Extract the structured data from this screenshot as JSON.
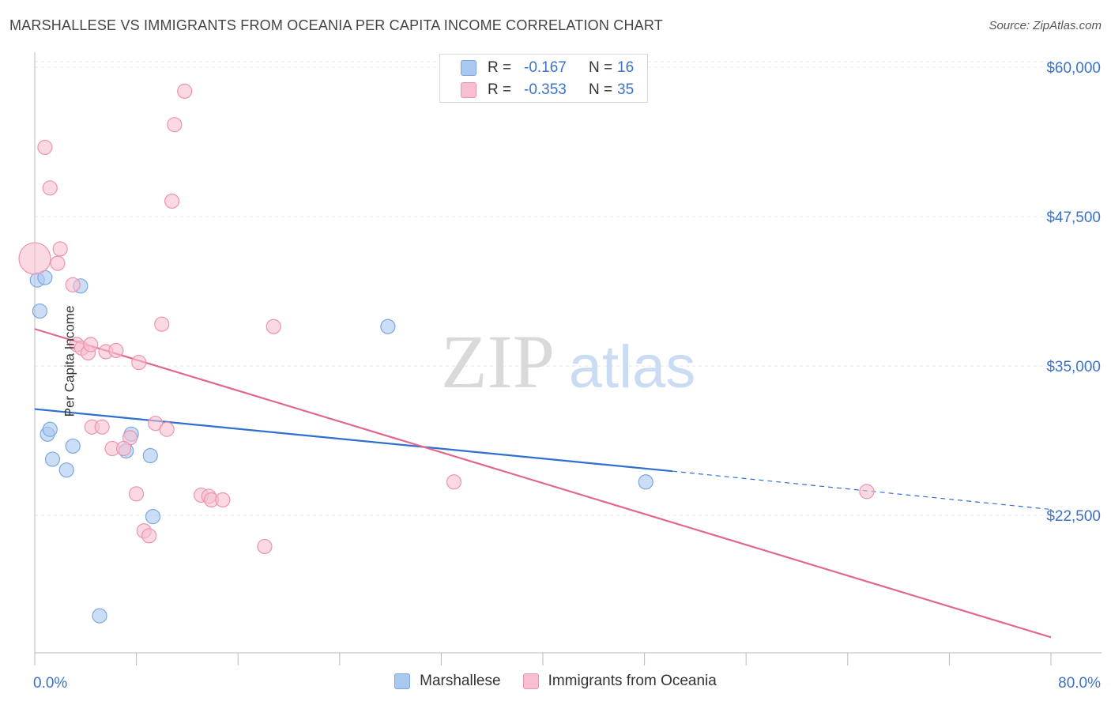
{
  "header": {
    "title": "MARSHALLESE VS IMMIGRANTS FROM OCEANIA PER CAPITA INCOME CORRELATION CHART",
    "source": "Source: ZipAtlas.com"
  },
  "legend_top": {
    "rows": [
      {
        "r_label": "R =",
        "r_value": "-0.167",
        "n_label": "N =",
        "n_value": "16"
      },
      {
        "r_label": "R =",
        "r_value": "-0.353",
        "n_label": "N =",
        "n_value": "35"
      }
    ]
  },
  "legend_bottom": {
    "items": [
      {
        "label": "Marshallese"
      },
      {
        "label": "Immigrants from Oceania"
      }
    ]
  },
  "watermark": {
    "zip": "ZIP",
    "atlas": "atlas"
  },
  "colors": {
    "blue_fill": "#aac8f0",
    "blue_stroke": "#7aa7e0",
    "blue_line": "#2f6fce",
    "pink_fill": "#f7bfcf",
    "pink_stroke": "#ee93ae",
    "pink_line": "#e0688f",
    "tick_label": "#3a73c9",
    "grid": "#e6e6e6"
  },
  "chart_data": {
    "type": "scatter",
    "title": "MARSHALLESE VS IMMIGRANTS FROM OCEANIA PER CAPITA INCOME CORRELATION CHART",
    "xlabel": "",
    "ylabel": "Per Capita Income",
    "xlim": [
      0,
      80
    ],
    "ylim": [
      11000,
      61000
    ],
    "x_tick_labels": [
      "0.0%",
      "80.0%"
    ],
    "y_ticks": [
      {
        "value": 22500,
        "label": "$22,500"
      },
      {
        "value": 35000,
        "label": "$35,000"
      },
      {
        "value": 47500,
        "label": "$47,500"
      },
      {
        "value": 60000,
        "label": "$60,000"
      }
    ],
    "series": [
      {
        "name": "Marshallese",
        "color": "blue",
        "r": -0.167,
        "n": 16,
        "points": [
          [
            0.2,
            42200
          ],
          [
            0.8,
            42400
          ],
          [
            0.4,
            39600
          ],
          [
            3.6,
            41700
          ],
          [
            1.0,
            29300
          ],
          [
            1.2,
            29700
          ],
          [
            3.0,
            28300
          ],
          [
            1.4,
            27200
          ],
          [
            2.5,
            26300
          ],
          [
            7.2,
            27900
          ],
          [
            7.6,
            29300
          ],
          [
            9.1,
            27500
          ],
          [
            9.3,
            22400
          ],
          [
            5.1,
            14100
          ],
          [
            27.8,
            38300
          ],
          [
            48.1,
            25300
          ]
        ],
        "trend": {
          "x0": 0,
          "y0": 31400,
          "x1": 50.2,
          "y1": 26200,
          "dash_to_x": 80,
          "dash_to_y": 23000
        }
      },
      {
        "name": "Immigrants from Oceania",
        "color": "pink",
        "r": -0.353,
        "n": 35,
        "points": [
          [
            0.0,
            44000
          ],
          [
            0.8,
            53300
          ],
          [
            1.2,
            49900
          ],
          [
            1.8,
            43600
          ],
          [
            2.0,
            44800
          ],
          [
            3.0,
            41800
          ],
          [
            11.8,
            58000
          ],
          [
            11.0,
            55200
          ],
          [
            10.8,
            48800
          ],
          [
            3.3,
            36800
          ],
          [
            3.7,
            36500
          ],
          [
            4.2,
            36100
          ],
          [
            4.4,
            36800
          ],
          [
            5.6,
            36200
          ],
          [
            6.4,
            36300
          ],
          [
            8.2,
            35300
          ],
          [
            10.0,
            38500
          ],
          [
            18.8,
            38300
          ],
          [
            4.5,
            29900
          ],
          [
            5.3,
            29900
          ],
          [
            9.5,
            30200
          ],
          [
            10.4,
            29700
          ],
          [
            7.5,
            29000
          ],
          [
            6.1,
            28100
          ],
          [
            7.0,
            28100
          ],
          [
            33.0,
            25300
          ],
          [
            8.0,
            24300
          ],
          [
            13.1,
            24200
          ],
          [
            13.7,
            24100
          ],
          [
            13.9,
            23800
          ],
          [
            14.8,
            23800
          ],
          [
            8.6,
            21200
          ],
          [
            9.0,
            20800
          ],
          [
            18.1,
            19900
          ],
          [
            65.5,
            24500
          ]
        ],
        "trend": {
          "x0": 0,
          "y0": 38100,
          "x1": 80,
          "y1": 12300
        }
      }
    ]
  }
}
